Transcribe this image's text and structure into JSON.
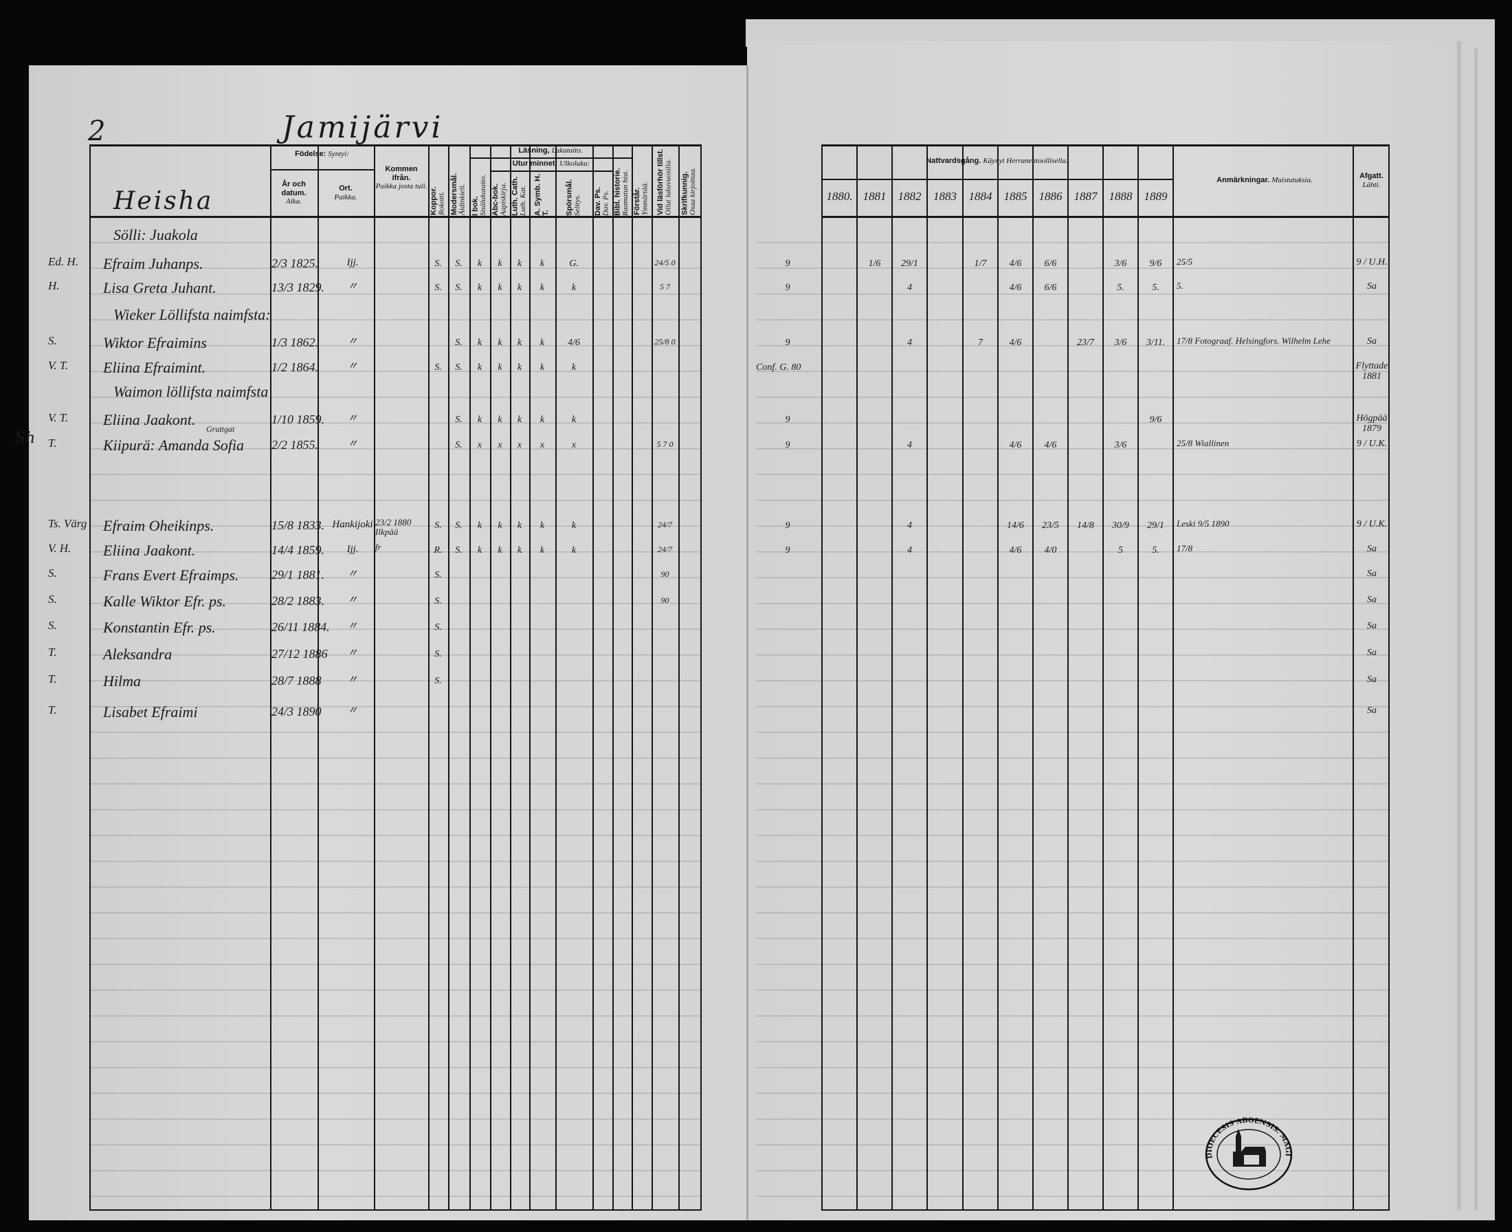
{
  "page_number": "2",
  "village": "Jamijärvi",
  "house": "Heisha",
  "margin_note": "Sh",
  "headers": {
    "birth": "Födelse:",
    "birth_fi": "Syntyi:",
    "date": "År och datum.",
    "date_fi": "Aika.",
    "place": "Ort.",
    "place_fi": "Paikka.",
    "from": "Kommen ifrån.",
    "from_fi": "Paikka josta tuli.",
    "smallpox": "Koppor.",
    "smallpox_fi": "Rokotti.",
    "tongue": "Modersmål.",
    "tongue_fi": "Äidinkieli.",
    "reading": "Läsning,",
    "reading_fi": "Lukutaito.",
    "book": "I bok.",
    "book_fi": "Sisälukutaito.",
    "memory": "Utur minnet:",
    "memory_fi": "Ulkoluku:",
    "abc": "Abc-bok.",
    "abc_fi": "Aapiskirja.",
    "luth": "Luth. Cath.",
    "luth_fi": "Luth. Kat.",
    "symb": "A. Symb. H. T.",
    "questions": "Spörsmål.",
    "questions_fi": "Selitys.",
    "psalms": "Dav. Ps.",
    "psalms_fi": "Dav. Ps.",
    "bible": "Bibl. historie.",
    "bible_fi": "Raamatun hist.",
    "understands": "Förstår.",
    "understands_fi": "Ymmärtää.",
    "exam": "Vid läsförhör tillst.",
    "exam_fi": "Ollut lukuvuosilla.",
    "writing": "Skrifkunnig.",
    "writing_fi": "Osaa kirjoittaa.",
    "communion": "Nattvardsgång.",
    "communion_fi": "Käynyt Herranehtoollisella.",
    "remarks": "Anmärkningar.",
    "remarks_fi": "Muistutuksia.",
    "vacc": "Afgatt.",
    "vacc_fi": "Lähti."
  },
  "years": [
    "1880.",
    "1881",
    "1882",
    "1883",
    "1884",
    "1885",
    "1886",
    "1887",
    "1888",
    "1889"
  ],
  "rows": [
    {
      "heading": "Sölli: Juakola"
    },
    {
      "mark": "Ed. H.",
      "name": "Efraim Juhanps.",
      "birth": "2/3 1825.",
      "place": "Ijj.",
      "kopp": "S.",
      "reading": [
        "S.",
        "k",
        "k",
        "k",
        "k",
        "G."
      ],
      "exam": "24/5 0",
      "side": "9",
      "communion": [
        "",
        "1/6",
        "29/1",
        "",
        "1/7",
        "4/6",
        "6/6",
        "",
        "3/6",
        "9/6"
      ],
      "remark": "25/5",
      "vacc": "9 / U.H."
    },
    {
      "mark": "H.",
      "name": "Lisa Greta Juhant.",
      "birth": "13/3 1829.",
      "place": "〃",
      "kopp": "S.",
      "reading": [
        "S.",
        "k",
        "k",
        "k",
        "k",
        "k"
      ],
      "exam": "5 7",
      "side": "9",
      "communion": [
        "",
        "",
        "4",
        "",
        "",
        "4/6",
        "6/6",
        "",
        "5.",
        "5."
      ],
      "remark": "5.",
      "vacc": "Sa"
    },
    {
      "heading": "Wieker Löllifsta naimfsta:"
    },
    {
      "mark": "S.",
      "name": "Wiktor Efraimins",
      "birth": "1/3 1862.",
      "place": "〃",
      "kopp": "",
      "reading": [
        "S.",
        "k",
        "k",
        "k",
        "k",
        "4/6"
      ],
      "exam": "25/8 0",
      "side": "9",
      "communion": [
        "",
        "",
        "4",
        "",
        "7",
        "4/6",
        "",
        "23/7",
        "3/6",
        "3/11."
      ],
      "remark": "17/8 Fotograaf. Helsingfors. Wilhelm Lehe",
      "vacc": "Sa"
    },
    {
      "mark": "V. T.",
      "name": "Eliina Efraimint.",
      "birth": "1/2 1864.",
      "place": "〃",
      "kopp": "S.",
      "reading": [
        "S.",
        "k",
        "k",
        "k",
        "k",
        "k"
      ],
      "exam": "",
      "side": "Conf. G. 80",
      "communion": [
        "",
        "",
        "",
        "",
        "",
        "",
        "",
        "",
        "",
        ""
      ],
      "remark": "",
      "vacc": "Flyttade 1881"
    },
    {
      "heading": "Waimon löllifsta naimfsta"
    },
    {
      "mark": "V. T.",
      "name": "Eliina Jaakont.",
      "birth": "1/10 1859.",
      "place": "〃",
      "kopp": "",
      "reading": [
        "S.",
        "k",
        "k",
        "k",
        "k",
        "k"
      ],
      "exam": "",
      "side": "9",
      "communion": [
        "",
        "",
        "",
        "",
        "",
        "",
        "",
        "",
        "",
        "9/6"
      ],
      "remark": "",
      "vacc": "Högpää 1879"
    },
    {
      "mark": "T.",
      "name": "Kiipurä: Amanda Sofia",
      "note": "Gruttgat",
      "birth": "2/2 1855.",
      "place": "〃",
      "kopp": "",
      "reading": [
        "S.",
        "x",
        "x",
        "x",
        "x",
        "x"
      ],
      "exam": "5 7 0",
      "side": "9",
      "communion": [
        "",
        "",
        "4",
        "",
        "",
        "4/6",
        "4/6",
        "",
        "3/6",
        ""
      ],
      "remark": "25/8 Wiallinen",
      "vacc": "9 / U.K."
    },
    {
      "mark": "Ts. Värg",
      "name": "Efraim Oheikinps.",
      "birth": "15/8 1833.",
      "place": "Hankijoki",
      "from": "23/2 1880 Ilkpää",
      "kopp": "S.",
      "reading": [
        "S.",
        "k",
        "k",
        "k",
        "k",
        "k"
      ],
      "exam": "24/7",
      "side": "9",
      "communion": [
        "",
        "",
        "4",
        "",
        "",
        "14/6",
        "23/5",
        "14/8",
        "30/9",
        "29/1"
      ],
      "remark": "Leski 9/5 1890",
      "vacc": "9 / U.K."
    },
    {
      "mark": "V. H.",
      "name": "Eliina Jaakont.",
      "birth": "14/4 1859.",
      "place": "Ijj.",
      "from": "fr",
      "kopp": "R.",
      "reading": [
        "S.",
        "k",
        "k",
        "k",
        "k",
        "k"
      ],
      "exam": "24/7",
      "side": "9",
      "communion": [
        "",
        "",
        "4",
        "",
        "",
        "4/6",
        "4/0",
        "",
        "5",
        "5."
      ],
      "remark": "17/8",
      "vacc": "Sa"
    },
    {
      "mark": "S.",
      "name": "Frans Evert Efraimps.",
      "birth": "29/1 1881.",
      "place": "〃",
      "kopp": "S.",
      "exam": "90",
      "vacc": "Sa"
    },
    {
      "mark": "S.",
      "name": "Kalle Wiktor Efr. ps.",
      "birth": "28/2 1883.",
      "place": "〃",
      "kopp": "S.",
      "exam": "90",
      "vacc": "Sa"
    },
    {
      "mark": "S.",
      "name": "Konstantin Efr. ps.",
      "birth": "26/11 1884.",
      "place": "〃",
      "kopp": "S.",
      "vacc": "Sa"
    },
    {
      "mark": "T.",
      "name": "Aleksandra",
      "birth": "27/12 1886",
      "place": "〃",
      "kopp": "S.",
      "vacc": "Sa"
    },
    {
      "mark": "T.",
      "name": "Hilma",
      "birth": "28/7 1888",
      "place": "〃",
      "kopp": "S.",
      "vacc": "Sa"
    },
    {
      "mark": "T.",
      "name": "Lisabet Efraimi",
      "birth": "24/3 1890",
      "place": "〃",
      "vacc": "Sa"
    }
  ],
  "stamp": {
    "text": "DIOECESIS ABOENSIS. MAGISTRAT. FINL."
  },
  "colors": {
    "paper": "#d6d6d6",
    "ink": "#151515",
    "background": "#070707"
  }
}
